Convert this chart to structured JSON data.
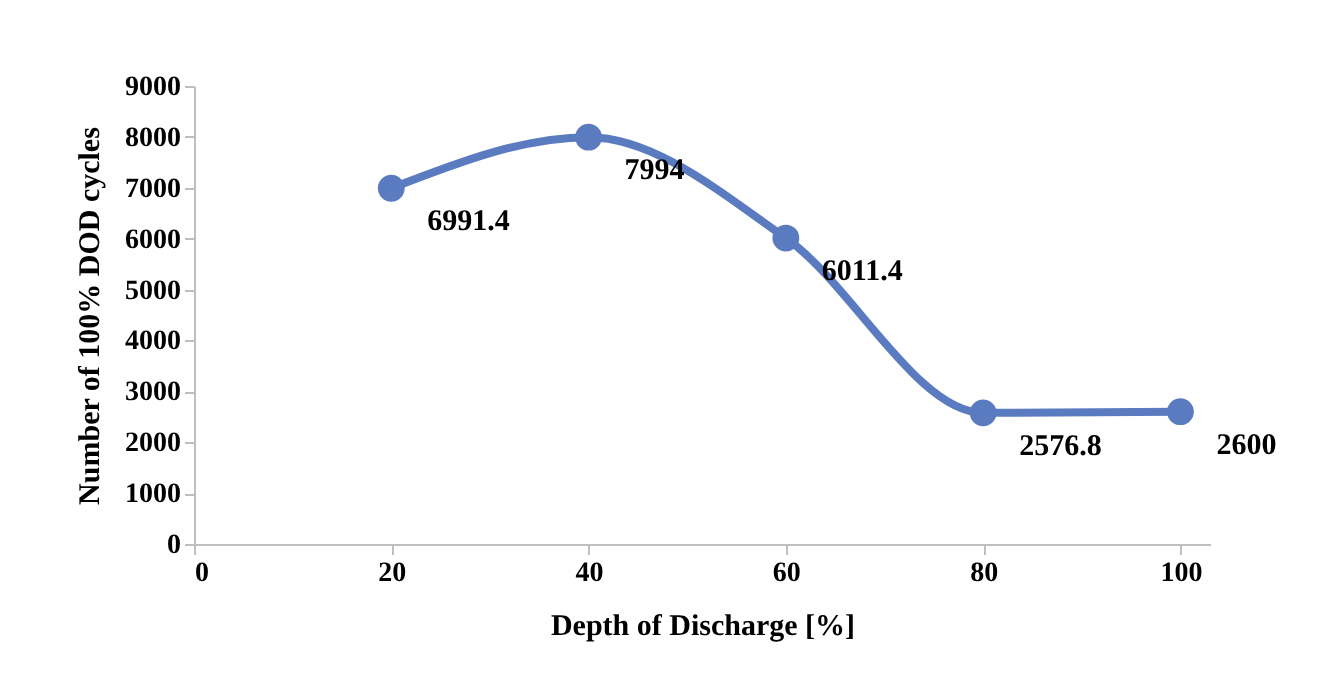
{
  "chart_data": {
    "type": "line",
    "xlabel": "Depth of Discharge [%]",
    "ylabel": "Number of 100% DOD cycles",
    "x": [
      20,
      40,
      60,
      80,
      100
    ],
    "series": [
      {
        "color": "#5b7bc0",
        "values": [
          6991.4,
          7994,
          6011.4,
          2576.8,
          2600
        ]
      }
    ],
    "xlim": [
      0,
      103
    ],
    "xticks": [
      0,
      20,
      40,
      60,
      80,
      100
    ],
    "ylim": [
      0,
      9000
    ],
    "yticks": [
      0,
      1000,
      2000,
      3000,
      4000,
      5000,
      6000,
      7000,
      8000,
      9000
    ],
    "grid": false,
    "legend": false,
    "marker": "circle",
    "line_style": "solid",
    "data_labels": true
  }
}
